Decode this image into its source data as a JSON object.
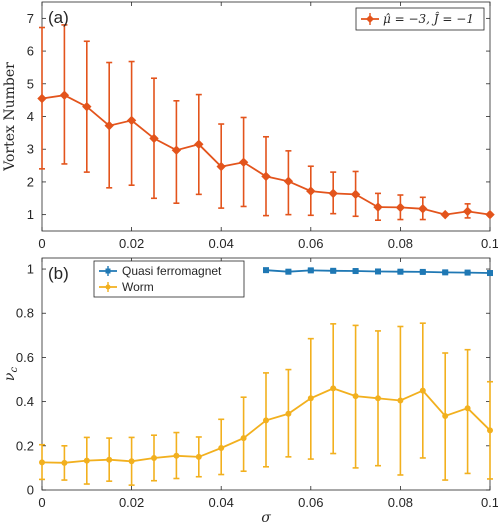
{
  "chart_data": [
    {
      "type": "line",
      "panel_label": "(a)",
      "ylabel": "Vortex Number",
      "xlabel": "",
      "xlim": [
        0,
        0.1
      ],
      "ylim": [
        0.5,
        7.5
      ],
      "xticks": [
        "0",
        "0.02",
        "0.04",
        "0.06",
        "0.08",
        "0.1"
      ],
      "yticks": [
        "1",
        "2",
        "3",
        "4",
        "5",
        "6",
        "7"
      ],
      "legend_position": "top-right",
      "series": [
        {
          "name": "μ̂ = −3, Ĵ = −1",
          "color": "#e3541c",
          "marker": "diamond",
          "x": [
            0,
            0.005,
            0.01,
            0.015,
            0.02,
            0.025,
            0.03,
            0.035,
            0.04,
            0.045,
            0.05,
            0.055,
            0.06,
            0.065,
            0.07,
            0.075,
            0.08,
            0.085,
            0.09,
            0.095,
            0.1
          ],
          "y": [
            4.55,
            4.65,
            4.3,
            3.72,
            3.88,
            3.33,
            2.97,
            3.15,
            2.47,
            2.6,
            2.17,
            2.02,
            1.72,
            1.65,
            1.62,
            1.23,
            1.22,
            1.18,
            1.0,
            1.1,
            1.0
          ],
          "err_low": [
            2.4,
            2.55,
            2.3,
            1.82,
            1.9,
            1.5,
            1.35,
            1.62,
            1.2,
            1.25,
            0.97,
            1.0,
            0.98,
            1.03,
            0.95,
            0.83,
            0.85,
            0.85,
            0.97,
            0.9,
            0.97
          ],
          "err_high": [
            6.72,
            6.8,
            6.3,
            5.65,
            5.68,
            5.17,
            4.48,
            4.67,
            3.77,
            3.97,
            3.38,
            2.95,
            2.48,
            2.3,
            2.32,
            1.65,
            1.6,
            1.53,
            1.03,
            1.33,
            1.03
          ]
        }
      ]
    },
    {
      "type": "line",
      "panel_label": "(b)",
      "ylabel": "ν_c",
      "xlabel": "σ",
      "xlim": [
        0,
        0.1
      ],
      "ylim": [
        0,
        1.05
      ],
      "xticks": [
        "0",
        "0.02",
        "0.04",
        "0.06",
        "0.08",
        "0.1"
      ],
      "yticks": [
        "0",
        "0.2",
        "0.4",
        "0.6",
        "0.8",
        "1"
      ],
      "legend_position": "top-left",
      "series": [
        {
          "name": "Quasi ferromagnet",
          "color": "#1f78b4",
          "marker": "square",
          "x": [
            0.05,
            0.055,
            0.06,
            0.065,
            0.07,
            0.075,
            0.08,
            0.085,
            0.09,
            0.095,
            0.1
          ],
          "y": [
            0.995,
            0.988,
            0.994,
            0.992,
            0.991,
            0.989,
            0.988,
            0.987,
            0.985,
            0.984,
            0.982
          ],
          "err_low": [
            0.99,
            0.983,
            0.989,
            0.987,
            0.986,
            0.984,
            0.983,
            0.982,
            0.98,
            0.979,
            0.977
          ],
          "err_high": [
            1.0,
            0.993,
            0.999,
            0.997,
            0.996,
            0.994,
            0.993,
            0.992,
            0.99,
            0.989,
            0.987
          ]
        },
        {
          "name": "Worm",
          "color": "#f2b01e",
          "marker": "circle",
          "x": [
            0,
            0.005,
            0.01,
            0.015,
            0.02,
            0.025,
            0.03,
            0.035,
            0.04,
            0.045,
            0.05,
            0.055,
            0.06,
            0.065,
            0.07,
            0.075,
            0.08,
            0.085,
            0.09,
            0.095,
            0.1
          ],
          "y": [
            0.125,
            0.123,
            0.133,
            0.137,
            0.13,
            0.145,
            0.155,
            0.15,
            0.19,
            0.235,
            0.315,
            0.345,
            0.415,
            0.46,
            0.425,
            0.415,
            0.405,
            0.45,
            0.335,
            0.37,
            0.27
          ],
          "err_low": [
            0.048,
            0.045,
            0.027,
            0.04,
            0.022,
            0.042,
            0.052,
            0.06,
            0.07,
            0.085,
            0.105,
            0.15,
            0.14,
            0.165,
            0.1,
            0.11,
            0.068,
            0.145,
            0.045,
            0.075,
            0.05
          ],
          "err_high": [
            0.205,
            0.2,
            0.238,
            0.235,
            0.238,
            0.248,
            0.26,
            0.24,
            0.32,
            0.42,
            0.53,
            0.545,
            0.685,
            0.752,
            0.745,
            0.72,
            0.74,
            0.755,
            0.62,
            0.635,
            0.49
          ]
        }
      ]
    }
  ]
}
